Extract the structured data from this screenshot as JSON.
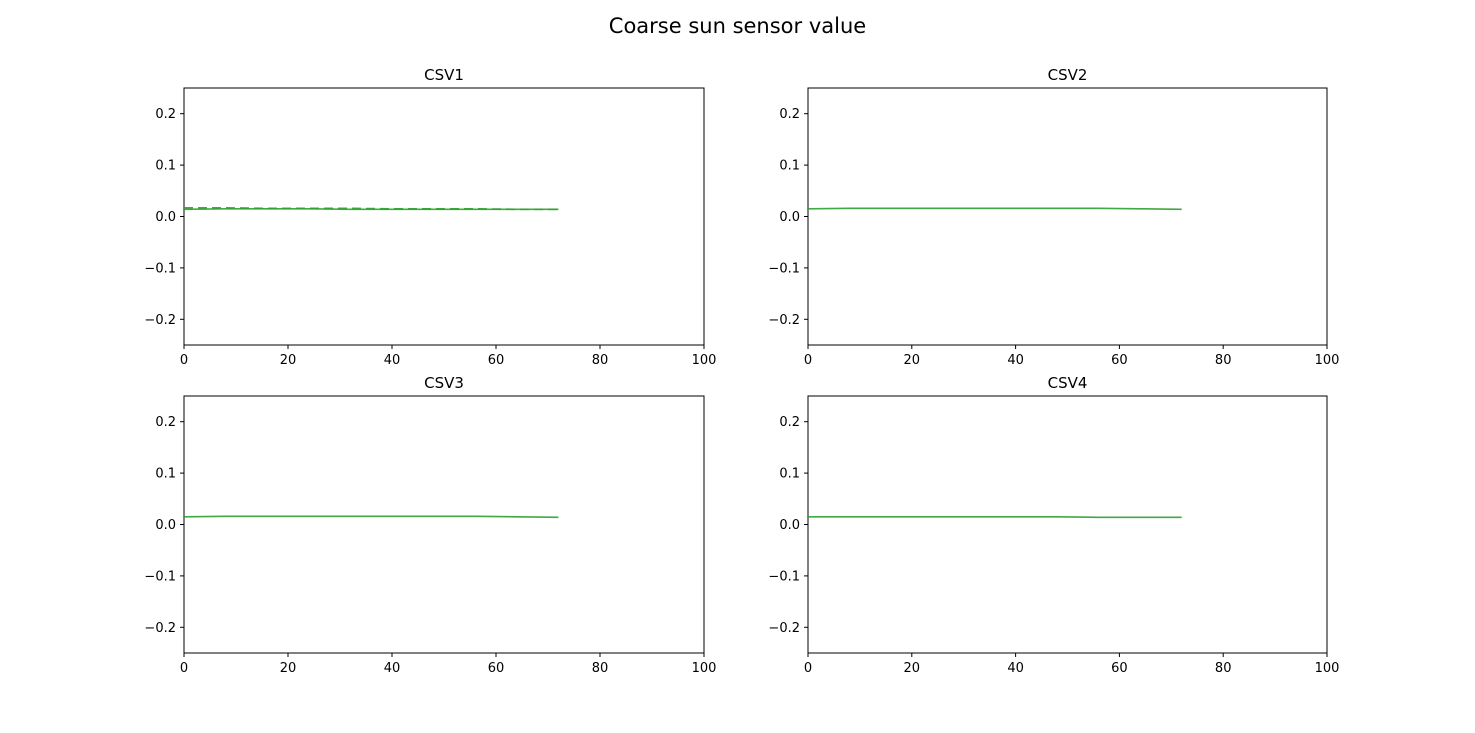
{
  "figure": {
    "title": "Coarse sun sensor value"
  },
  "chart_data": [
    {
      "type": "line",
      "title": "CSV1",
      "xlabel": "",
      "ylabel": "",
      "xlim": [
        0,
        100
      ],
      "ylim": [
        -0.25,
        0.25
      ],
      "xticks": [
        "0",
        "20",
        "40",
        "60",
        "80",
        "100"
      ],
      "yticks": [
        "−0.2",
        "−0.1",
        "0.0",
        "0.1",
        "0.2"
      ],
      "grid": false,
      "series": [
        {
          "color": "#2ca02c",
          "x": [
            0,
            8,
            16,
            24,
            32,
            40,
            48,
            56,
            64,
            72
          ],
          "y": [
            0.014,
            0.015,
            0.015,
            0.015,
            0.014,
            0.014,
            0.014,
            0.014,
            0.014,
            0.014
          ]
        },
        {
          "color": "#2ca02c",
          "dashed": true,
          "x": [
            0,
            8,
            16,
            24,
            32,
            40,
            48,
            56,
            64,
            72
          ],
          "y": [
            0.017,
            0.017,
            0.016,
            0.016,
            0.016,
            0.015,
            0.015,
            0.015,
            0.014,
            0.014
          ]
        }
      ]
    },
    {
      "type": "line",
      "title": "CSV2",
      "xlabel": "",
      "ylabel": "",
      "xlim": [
        0,
        100
      ],
      "ylim": [
        -0.25,
        0.25
      ],
      "xticks": [
        "0",
        "20",
        "40",
        "60",
        "80",
        "100"
      ],
      "yticks": [
        "−0.2",
        "−0.1",
        "0.0",
        "0.1",
        "0.2"
      ],
      "grid": false,
      "series": [
        {
          "color": "#2ca02c",
          "x": [
            0,
            8,
            16,
            24,
            32,
            40,
            48,
            56,
            64,
            72
          ],
          "y": [
            0.015,
            0.016,
            0.016,
            0.016,
            0.016,
            0.016,
            0.016,
            0.016,
            0.015,
            0.014
          ]
        }
      ]
    },
    {
      "type": "line",
      "title": "CSV3",
      "xlabel": "",
      "ylabel": "",
      "xlim": [
        0,
        100
      ],
      "ylim": [
        -0.25,
        0.25
      ],
      "xticks": [
        "0",
        "20",
        "40",
        "60",
        "80",
        "100"
      ],
      "yticks": [
        "−0.2",
        "−0.1",
        "0.0",
        "0.1",
        "0.2"
      ],
      "grid": false,
      "series": [
        {
          "color": "#2ca02c",
          "x": [
            0,
            8,
            16,
            24,
            32,
            40,
            48,
            56,
            64,
            72
          ],
          "y": [
            0.015,
            0.016,
            0.016,
            0.016,
            0.016,
            0.016,
            0.016,
            0.016,
            0.015,
            0.014
          ]
        }
      ]
    },
    {
      "type": "line",
      "title": "CSV4",
      "xlabel": "",
      "ylabel": "",
      "xlim": [
        0,
        100
      ],
      "ylim": [
        -0.25,
        0.25
      ],
      "xticks": [
        "0",
        "20",
        "40",
        "60",
        "80",
        "100"
      ],
      "yticks": [
        "−0.2",
        "−0.1",
        "0.0",
        "0.1",
        "0.2"
      ],
      "grid": false,
      "series": [
        {
          "color": "#2ca02c",
          "x": [
            0,
            8,
            16,
            24,
            32,
            40,
            48,
            56,
            64,
            72
          ],
          "y": [
            0.015,
            0.015,
            0.015,
            0.015,
            0.015,
            0.015,
            0.015,
            0.014,
            0.014,
            0.014
          ]
        }
      ]
    }
  ]
}
